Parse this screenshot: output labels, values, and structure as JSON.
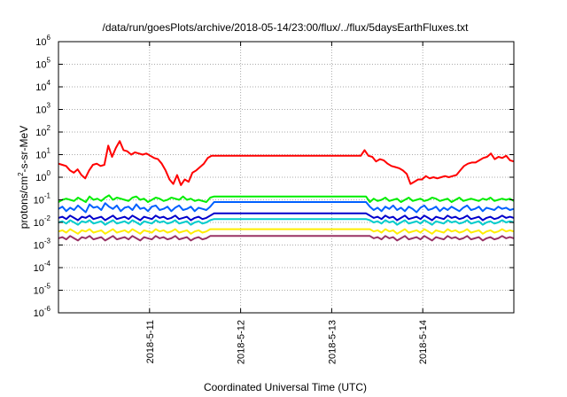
{
  "chart_data": {
    "type": "line",
    "title": "/data/run/goesPlots/archive/2018-05-14/23:00/flux/../flux/5daysEarthFluxes.txt",
    "xlabel": "Coordinated Universal Time (UTC)",
    "ylabel": "protons/cm2-s-sr-MeV",
    "ylabel_parts": {
      "pre": "protons/cm",
      "sup": "2",
      "post": "-s-sr-MeV"
    },
    "yscale": "log",
    "ylim_exp": [
      -6,
      6
    ],
    "yticks": [
      {
        "base": "10",
        "exp": "-6"
      },
      {
        "base": "10",
        "exp": "-5"
      },
      {
        "base": "10",
        "exp": "-4"
      },
      {
        "base": "10",
        "exp": "-3"
      },
      {
        "base": "10",
        "exp": "-2"
      },
      {
        "base": "10",
        "exp": "-1"
      },
      {
        "base": "10",
        "exp": "0"
      },
      {
        "base": "10",
        "exp": "1"
      },
      {
        "base": "10",
        "exp": "2"
      },
      {
        "base": "10",
        "exp": "3"
      },
      {
        "base": "10",
        "exp": "4"
      },
      {
        "base": "10",
        "exp": "5"
      },
      {
        "base": "10",
        "exp": "6"
      }
    ],
    "xlim": [
      "2018-05-10 00:00",
      "2018-05-15 00:00"
    ],
    "xticks": [
      {
        "label": "2018-5-11",
        "day": 1
      },
      {
        "label": "2018-5-12",
        "day": 2
      },
      {
        "label": "2018-5-13",
        "day": 3
      },
      {
        "label": "2018-5-14",
        "day": 4
      }
    ],
    "grid": true,
    "series": [
      {
        "color": "#ff0000",
        "log10_values": [
          0.6,
          0.55,
          0.5,
          0.3,
          0.2,
          0.35,
          0.1,
          -0.05,
          0.3,
          0.55,
          0.6,
          0.5,
          0.55,
          1.4,
          0.9,
          1.3,
          1.6,
          1.2,
          1.15,
          1.0,
          1.1,
          1.05,
          1.0,
          1.05,
          0.95,
          0.85,
          0.8,
          0.6,
          0.3,
          -0.1,
          -0.3,
          0.1,
          -0.35,
          -0.1,
          -0.2,
          0.2,
          0.3,
          0.45,
          0.6,
          0.85,
          0.95,
          0.95,
          0.95,
          0.95,
          0.95,
          0.95,
          0.95,
          0.95,
          0.95,
          0.95,
          0.95,
          0.95,
          0.95,
          0.95,
          0.95,
          0.95,
          0.95,
          0.95,
          0.95,
          0.95,
          0.95,
          0.95,
          0.95,
          0.95,
          0.95,
          0.95,
          0.95,
          0.95,
          0.95,
          0.95,
          0.95,
          0.95,
          0.95,
          0.95,
          0.95,
          0.95,
          0.95,
          0.95,
          0.95,
          0.95,
          1.2,
          0.95,
          0.9,
          0.7,
          0.8,
          0.75,
          0.6,
          0.5,
          0.45,
          0.4,
          0.3,
          0.15,
          -0.3,
          -0.2,
          -0.1,
          -0.1,
          0.05,
          -0.05,
          0.0,
          -0.05,
          0.0,
          0.05,
          0.0,
          0.05,
          0.1,
          0.3,
          0.5,
          0.6,
          0.65,
          0.65,
          0.75,
          0.85,
          0.9,
          1.05,
          0.8,
          0.9,
          0.85,
          0.95,
          0.75,
          0.7
        ]
      },
      {
        "color": "#00ee00",
        "log10_values": [
          -1.1,
          -1.0,
          -0.95,
          -1.0,
          -1.05,
          -0.9,
          -1.0,
          -1.1,
          -0.85,
          -1.0,
          -0.95,
          -1.05,
          -0.9,
          -0.8,
          -1.0,
          -0.9,
          -0.95,
          -1.0,
          -1.05,
          -0.9,
          -0.85,
          -1.0,
          -0.95,
          -1.1,
          -1.0,
          -0.9,
          -0.95,
          -1.05,
          -1.0,
          -0.9,
          -0.95,
          -1.0,
          -0.85,
          -1.0,
          -0.95,
          -1.05,
          -1.0,
          -1.05,
          -1.1,
          -0.9,
          -0.85,
          -0.85,
          -0.85,
          -0.85,
          -0.85,
          -0.85,
          -0.85,
          -0.85,
          -0.85,
          -0.85,
          -0.85,
          -0.85,
          -0.85,
          -0.85,
          -0.85,
          -0.85,
          -0.85,
          -0.85,
          -0.85,
          -0.85,
          -0.85,
          -0.85,
          -0.85,
          -0.85,
          -0.85,
          -0.85,
          -0.85,
          -0.85,
          -0.85,
          -0.85,
          -0.85,
          -0.85,
          -0.85,
          -0.85,
          -0.85,
          -0.85,
          -0.85,
          -0.85,
          -0.85,
          -0.85,
          -1.1,
          -0.95,
          -1.05,
          -1.0,
          -0.9,
          -1.05,
          -1.0,
          -0.95,
          -1.1,
          -1.0,
          -0.9,
          -1.05,
          -1.0,
          -0.95,
          -1.05,
          -1.0,
          -0.9,
          -0.95,
          -1.05,
          -1.0,
          -0.95,
          -1.1,
          -1.0,
          -0.9,
          -1.05,
          -1.0,
          -0.95,
          -1.0,
          -1.05,
          -0.95,
          -1.0,
          -0.9,
          -1.05,
          -1.0,
          -0.95,
          -1.0,
          -0.95,
          -1.05
        ]
      },
      {
        "color": "#0060ff",
        "log10_values": [
          -1.4,
          -1.3,
          -1.5,
          -1.35,
          -1.45,
          -1.25,
          -1.4,
          -1.55,
          -1.2,
          -1.35,
          -1.3,
          -1.45,
          -1.15,
          -1.3,
          -1.4,
          -1.25,
          -1.5,
          -1.35,
          -1.3,
          -1.45,
          -1.2,
          -1.4,
          -1.35,
          -1.5,
          -1.3,
          -1.25,
          -1.45,
          -1.4,
          -1.3,
          -1.5,
          -1.35,
          -1.25,
          -1.45,
          -1.4,
          -1.3,
          -1.5,
          -1.35,
          -1.4,
          -1.45,
          -1.3,
          -1.1,
          -1.1,
          -1.1,
          -1.1,
          -1.1,
          -1.1,
          -1.1,
          -1.1,
          -1.1,
          -1.1,
          -1.1,
          -1.1,
          -1.1,
          -1.1,
          -1.1,
          -1.1,
          -1.1,
          -1.1,
          -1.1,
          -1.1,
          -1.1,
          -1.1,
          -1.1,
          -1.1,
          -1.1,
          -1.1,
          -1.1,
          -1.1,
          -1.1,
          -1.1,
          -1.1,
          -1.1,
          -1.1,
          -1.1,
          -1.1,
          -1.1,
          -1.1,
          -1.1,
          -1.1,
          -1.1,
          -1.3,
          -1.45,
          -1.35,
          -1.5,
          -1.3,
          -1.4,
          -1.25,
          -1.45,
          -1.35,
          -1.5,
          -1.3,
          -1.4,
          -1.55,
          -1.35,
          -1.25,
          -1.45,
          -1.4,
          -1.3,
          -1.5,
          -1.35,
          -1.45,
          -1.3,
          -1.4,
          -1.5,
          -1.35,
          -1.25,
          -1.45,
          -1.4,
          -1.3,
          -1.5,
          -1.35,
          -1.4,
          -1.45,
          -1.3,
          -1.4,
          -1.35,
          -1.45,
          -1.4
        ]
      },
      {
        "color": "#0000cc",
        "log10_values": [
          -1.8,
          -1.75,
          -1.85,
          -1.7,
          -1.8,
          -1.9,
          -1.75,
          -1.8,
          -1.7,
          -1.85,
          -1.8,
          -1.75,
          -1.9,
          -1.8,
          -1.7,
          -1.85,
          -1.8,
          -1.75,
          -1.85,
          -1.7,
          -1.8,
          -1.9,
          -1.75,
          -1.8,
          -1.85,
          -1.7,
          -1.8,
          -1.75,
          -1.85,
          -1.8,
          -1.7,
          -1.85,
          -1.8,
          -1.75,
          -1.9,
          -1.8,
          -1.75,
          -1.85,
          -1.8,
          -1.7,
          -1.6,
          -1.6,
          -1.6,
          -1.6,
          -1.6,
          -1.6,
          -1.6,
          -1.6,
          -1.6,
          -1.6,
          -1.6,
          -1.6,
          -1.6,
          -1.6,
          -1.6,
          -1.6,
          -1.6,
          -1.6,
          -1.6,
          -1.6,
          -1.6,
          -1.6,
          -1.6,
          -1.6,
          -1.6,
          -1.6,
          -1.6,
          -1.6,
          -1.6,
          -1.6,
          -1.6,
          -1.6,
          -1.6,
          -1.6,
          -1.6,
          -1.6,
          -1.6,
          -1.6,
          -1.6,
          -1.6,
          -1.7,
          -1.8,
          -1.75,
          -1.85,
          -1.7,
          -1.8,
          -1.75,
          -1.9,
          -1.8,
          -1.7,
          -1.85,
          -1.8,
          -1.75,
          -1.85,
          -1.7,
          -1.8,
          -1.9,
          -1.75,
          -1.8,
          -1.85,
          -1.7,
          -1.8,
          -1.75,
          -1.85,
          -1.8,
          -1.7,
          -1.85,
          -1.8,
          -1.75,
          -1.9,
          -1.8,
          -1.75,
          -1.85,
          -1.8,
          -1.7,
          -1.8,
          -1.75,
          -1.8
        ]
      },
      {
        "color": "#00cccc",
        "log10_values": [
          -2.0,
          -1.95,
          -2.05,
          -1.9,
          -2.0,
          -2.1,
          -1.95,
          -2.0,
          -1.9,
          -2.05,
          -2.0,
          -1.95,
          -2.1,
          -2.0,
          -1.9,
          -2.05,
          -2.0,
          -1.95,
          -2.05,
          -1.9,
          -2.0,
          -2.1,
          -1.95,
          -2.0,
          -2.05,
          -1.9,
          -2.0,
          -1.95,
          -2.05,
          -2.0,
          -1.9,
          -2.05,
          -2.0,
          -1.95,
          -2.1,
          -2.0,
          -1.95,
          -2.05,
          -2.0,
          -1.9,
          -1.85,
          -1.85,
          -1.85,
          -1.85,
          -1.85,
          -1.85,
          -1.85,
          -1.85,
          -1.85,
          -1.85,
          -1.85,
          -1.85,
          -1.85,
          -1.85,
          -1.85,
          -1.85,
          -1.85,
          -1.85,
          -1.85,
          -1.85,
          -1.85,
          -1.85,
          -1.85,
          -1.85,
          -1.85,
          -1.85,
          -1.85,
          -1.85,
          -1.85,
          -1.85,
          -1.85,
          -1.85,
          -1.85,
          -1.85,
          -1.85,
          -1.85,
          -1.85,
          -1.85,
          -1.85,
          -1.85,
          -1.9,
          -2.0,
          -1.95,
          -2.05,
          -1.9,
          -2.0,
          -1.95,
          -2.1,
          -2.0,
          -1.9,
          -2.05,
          -2.0,
          -1.95,
          -2.05,
          -1.9,
          -2.0,
          -2.1,
          -1.95,
          -2.0,
          -2.05,
          -1.9,
          -2.0,
          -1.95,
          -2.05,
          -2.0,
          -1.9,
          -2.05,
          -2.0,
          -1.95,
          -2.1,
          -2.0,
          -1.95,
          -2.05,
          -2.0,
          -1.9,
          -2.0,
          -1.95,
          -2.0
        ]
      },
      {
        "color": "#ffee00",
        "log10_values": [
          -2.4,
          -2.35,
          -2.45,
          -2.3,
          -2.4,
          -2.5,
          -2.35,
          -2.4,
          -2.3,
          -2.45,
          -2.4,
          -2.35,
          -2.5,
          -2.4,
          -2.3,
          -2.45,
          -2.4,
          -2.35,
          -2.45,
          -2.3,
          -2.4,
          -2.5,
          -2.35,
          -2.4,
          -2.45,
          -2.3,
          -2.4,
          -2.35,
          -2.45,
          -2.4,
          -2.3,
          -2.45,
          -2.4,
          -2.35,
          -2.5,
          -2.4,
          -2.35,
          -2.45,
          -2.4,
          -2.3,
          -2.3,
          -2.3,
          -2.3,
          -2.3,
          -2.3,
          -2.3,
          -2.3,
          -2.3,
          -2.3,
          -2.3,
          -2.3,
          -2.3,
          -2.3,
          -2.3,
          -2.3,
          -2.3,
          -2.3,
          -2.3,
          -2.3,
          -2.3,
          -2.3,
          -2.3,
          -2.3,
          -2.3,
          -2.3,
          -2.3,
          -2.3,
          -2.3,
          -2.3,
          -2.3,
          -2.3,
          -2.3,
          -2.3,
          -2.3,
          -2.3,
          -2.3,
          -2.3,
          -2.3,
          -2.3,
          -2.3,
          -2.3,
          -2.4,
          -2.35,
          -2.45,
          -2.3,
          -2.4,
          -2.35,
          -2.5,
          -2.4,
          -2.3,
          -2.45,
          -2.4,
          -2.35,
          -2.45,
          -2.3,
          -2.4,
          -2.5,
          -2.35,
          -2.4,
          -2.45,
          -2.3,
          -2.4,
          -2.35,
          -2.45,
          -2.4,
          -2.3,
          -2.45,
          -2.4,
          -2.35,
          -2.5,
          -2.4,
          -2.35,
          -2.45,
          -2.4,
          -2.3,
          -2.4,
          -2.35,
          -2.4
        ]
      },
      {
        "color": "#993366",
        "log10_values": [
          -2.7,
          -2.65,
          -2.75,
          -2.6,
          -2.7,
          -2.8,
          -2.65,
          -2.7,
          -2.6,
          -2.75,
          -2.7,
          -2.65,
          -2.8,
          -2.7,
          -2.6,
          -2.75,
          -2.7,
          -2.65,
          -2.75,
          -2.6,
          -2.7,
          -2.8,
          -2.65,
          -2.7,
          -2.75,
          -2.6,
          -2.7,
          -2.65,
          -2.75,
          -2.7,
          -2.6,
          -2.75,
          -2.7,
          -2.65,
          -2.8,
          -2.7,
          -2.65,
          -2.75,
          -2.7,
          -2.6,
          -2.6,
          -2.6,
          -2.6,
          -2.6,
          -2.6,
          -2.6,
          -2.6,
          -2.6,
          -2.6,
          -2.6,
          -2.6,
          -2.6,
          -2.6,
          -2.6,
          -2.6,
          -2.6,
          -2.6,
          -2.6,
          -2.6,
          -2.6,
          -2.6,
          -2.6,
          -2.6,
          -2.6,
          -2.6,
          -2.6,
          -2.6,
          -2.6,
          -2.6,
          -2.6,
          -2.6,
          -2.6,
          -2.6,
          -2.6,
          -2.6,
          -2.6,
          -2.6,
          -2.6,
          -2.6,
          -2.6,
          -2.6,
          -2.7,
          -2.65,
          -2.75,
          -2.6,
          -2.7,
          -2.65,
          -2.8,
          -2.7,
          -2.6,
          -2.75,
          -2.7,
          -2.65,
          -2.75,
          -2.6,
          -2.7,
          -2.8,
          -2.65,
          -2.7,
          -2.75,
          -2.6,
          -2.7,
          -2.65,
          -2.75,
          -2.7,
          -2.6,
          -2.75,
          -2.7,
          -2.65,
          -2.8,
          -2.7,
          -2.65,
          -2.75,
          -2.7,
          -2.6,
          -2.7,
          -2.65,
          -2.7
        ]
      }
    ]
  }
}
